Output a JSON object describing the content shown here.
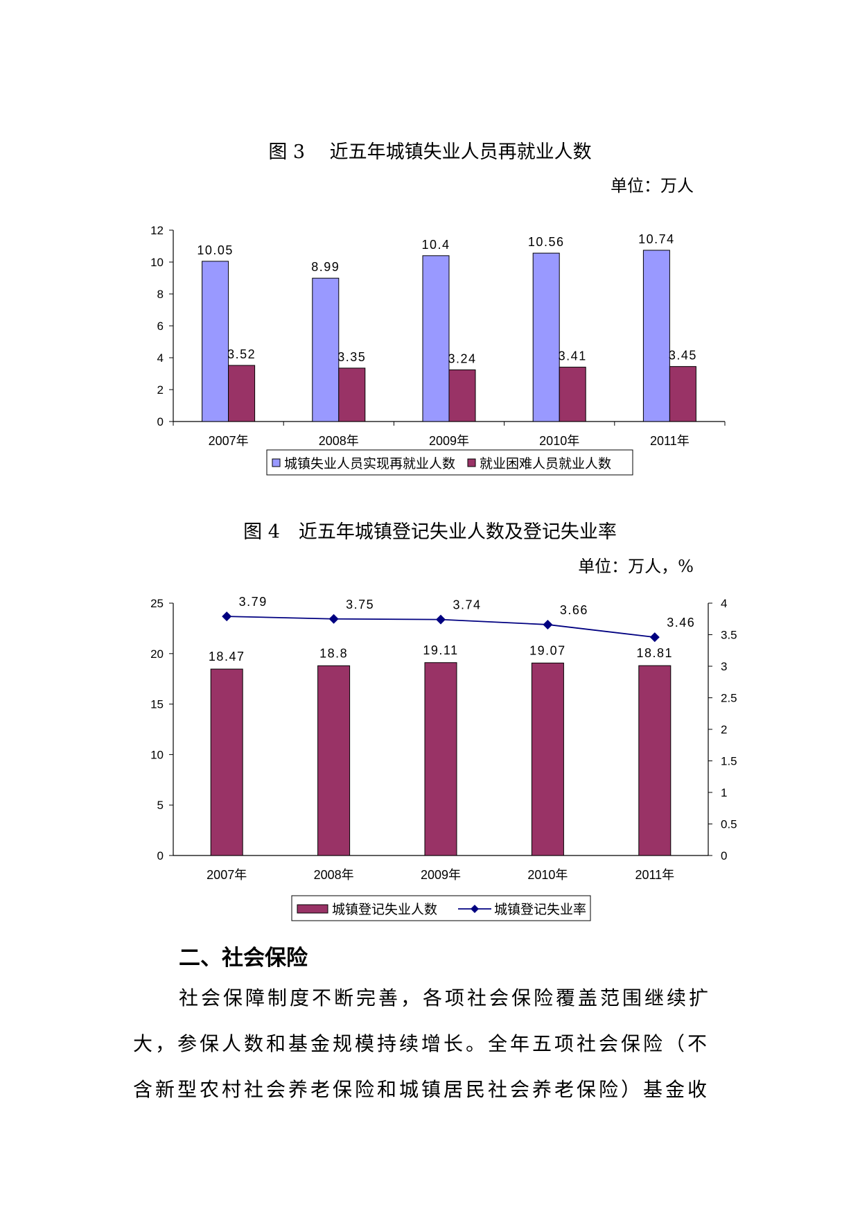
{
  "chart_data": [
    {
      "type": "bar",
      "title": "图 3　 近五年城镇失业人员再就业人数",
      "unit": "单位：万人",
      "categories": [
        "2007年",
        "2008年",
        "2009年",
        "2010年",
        "2011年"
      ],
      "ylim": [
        0,
        12
      ],
      "yticks": [
        0,
        2,
        4,
        6,
        8,
        10,
        12
      ],
      "grid": false,
      "legend_position": "bottom",
      "series": [
        {
          "name": "城镇失业人员实现再就业人数",
          "color": "#9999ff",
          "values": [
            10.05,
            8.99,
            10.4,
            10.56,
            10.74
          ],
          "value_labels": [
            "10.05",
            "8.99",
            "10.4",
            "10.56",
            "10.74"
          ]
        },
        {
          "name": "就业困难人员就业人数",
          "color": "#993366",
          "values": [
            3.52,
            3.35,
            3.24,
            3.41,
            3.45
          ],
          "value_labels": [
            "3.52",
            "3.35",
            "3.24",
            "3.41",
            "3.45"
          ]
        }
      ]
    },
    {
      "type": "bar+line",
      "title": "图 4　近五年城镇登记失业人数及登记失业率",
      "unit": "单位：万人，%",
      "categories": [
        "2007年",
        "2008年",
        "2009年",
        "2010年",
        "2011年"
      ],
      "ylim": [
        0,
        25
      ],
      "yticks": [
        0,
        5,
        10,
        15,
        20,
        25
      ],
      "y2lim": [
        0,
        4
      ],
      "y2ticks": [
        "0",
        "0.5",
        "1",
        "1.5",
        "2",
        "2.5",
        "3",
        "3.5",
        "4"
      ],
      "grid": false,
      "legend_position": "bottom",
      "series": [
        {
          "name": "城镇登记失业人数",
          "kind": "bar",
          "axis": "left",
          "color": "#993366",
          "values": [
            18.47,
            18.8,
            19.11,
            19.07,
            18.81
          ],
          "value_labels": [
            "18.47",
            "18.8",
            "19.11",
            "19.07",
            "18.81"
          ]
        },
        {
          "name": "城镇登记失业率",
          "kind": "line",
          "axis": "right",
          "color": "#000080",
          "values": [
            3.79,
            3.75,
            3.74,
            3.66,
            3.46
          ],
          "value_labels": [
            "3.79",
            "3.75",
            "3.74",
            "3.66",
            "3.46"
          ]
        }
      ]
    }
  ],
  "section": {
    "heading": "二、社会保险",
    "lines": [
      "社会保障制度不断完善，各项社会保险覆盖范围继续扩",
      "大，参保人数和基金规模持续增长。全年五项社会保险（不",
      "含新型农村社会养老保险和城镇居民社会养老保险）基金收"
    ]
  }
}
